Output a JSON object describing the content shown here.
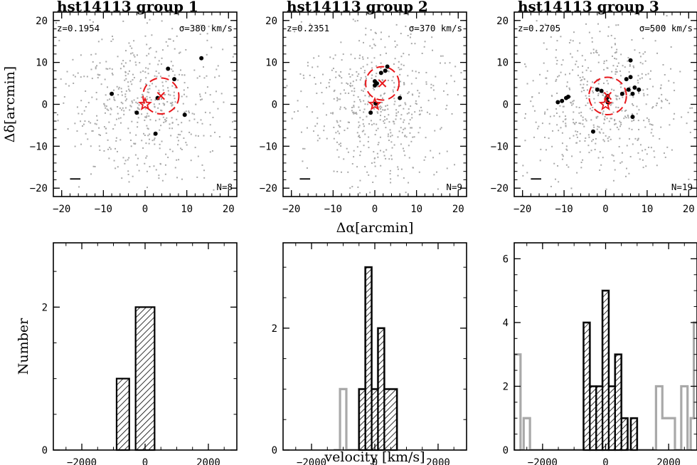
{
  "chart_data": [
    {
      "type": "scatter",
      "title": "hst14113 group 1",
      "redshift_label": "z=0.1954",
      "sigma_label": "σ=380 km/s",
      "n_label": "N=8",
      "xlabel": "",
      "ylabel": "Δδ[arcmin]",
      "xlim": [
        -22,
        22
      ],
      "ylim": [
        -22,
        22
      ],
      "xticks": [
        -20,
        -10,
        0,
        10,
        20
      ],
      "yticks": [
        -20,
        -10,
        0,
        10,
        20
      ],
      "members": [
        [
          5.5,
          8.5
        ],
        [
          7,
          6
        ],
        [
          13.5,
          11
        ],
        [
          -8,
          2.5
        ],
        [
          3,
          1.5
        ],
        [
          -2,
          -2
        ],
        [
          9.5,
          -2.5
        ],
        [
          2.5,
          -7
        ]
      ],
      "center_cross": [
        3.8,
        2.0
      ],
      "bcg_star": [
        0,
        0
      ],
      "circle": {
        "center": [
          3.8,
          2.0
        ],
        "radius": 4.3
      },
      "scale_bar": [
        -18,
        -15.5,
        -17.8
      ]
    },
    {
      "type": "scatter",
      "title": "hst14113 group 2",
      "redshift_label": "z=0.2351",
      "sigma_label": "σ=370 km/s",
      "n_label": "N=9",
      "xlabel": "Δα[arcmin]",
      "ylabel": "",
      "xlim": [
        -22,
        22
      ],
      "ylim": [
        -22,
        22
      ],
      "xticks": [
        -20,
        -10,
        0,
        10,
        20
      ],
      "yticks": [
        -20,
        -10,
        0,
        10,
        20
      ],
      "members": [
        [
          3,
          9
        ],
        [
          2.5,
          8
        ],
        [
          1.5,
          7.5
        ],
        [
          0,
          5.5
        ],
        [
          0,
          4.5
        ],
        [
          0.5,
          5
        ],
        [
          6,
          1.5
        ],
        [
          -1,
          -2
        ],
        [
          0.2,
          0.2
        ]
      ],
      "center_cross": [
        1.8,
        5.0
      ],
      "bcg_star": [
        0,
        0
      ],
      "circle": {
        "center": [
          1.8,
          5.0
        ],
        "radius": 4.0
      },
      "scale_bar": [
        -18,
        -15.5,
        -17.8
      ]
    },
    {
      "type": "scatter",
      "title": "hst14113 group 3",
      "redshift_label": "z=0.2705",
      "sigma_label": "σ=500 km/s",
      "n_label": "N=19",
      "xlabel": "",
      "ylabel": "",
      "xlim": [
        -22,
        22
      ],
      "ylim": [
        -22,
        22
      ],
      "xticks": [
        -20,
        -10,
        0,
        10,
        20
      ],
      "yticks": [
        -20,
        -10,
        0,
        10,
        20
      ],
      "members": [
        [
          -11.5,
          0.5
        ],
        [
          -10.5,
          0.8
        ],
        [
          -9.5,
          1.5
        ],
        [
          -9,
          1.8
        ],
        [
          -2,
          3.5
        ],
        [
          -1,
          3.2
        ],
        [
          0.3,
          1.5
        ],
        [
          0.5,
          2
        ],
        [
          4,
          2.5
        ],
        [
          5.5,
          3.5
        ],
        [
          6,
          10.5
        ],
        [
          6,
          6.5
        ],
        [
          7,
          4
        ],
        [
          8,
          3.5
        ],
        [
          6.5,
          2.5
        ],
        [
          6.5,
          -3
        ],
        [
          -3,
          -6.5
        ],
        [
          0.5,
          0.5
        ],
        [
          5,
          6
        ]
      ],
      "center_cross": [
        0.5,
        2.0
      ],
      "bcg_star": [
        0,
        0
      ],
      "circle": {
        "center": [
          0.5,
          2.0
        ],
        "radius": 4.5
      },
      "scale_bar": [
        -18,
        -15.5,
        -17.8
      ]
    },
    {
      "type": "histogram",
      "title": "",
      "xlabel": "",
      "ylabel": "Number",
      "xlim": [
        -2900,
        2900
      ],
      "ylim": [
        0,
        2.9
      ],
      "xticks": [
        -2000,
        0,
        2000
      ],
      "yticks": [
        0,
        2
      ],
      "members_bins": [
        [
          -900,
          -500,
          1
        ],
        [
          -300,
          300,
          2
        ]
      ],
      "field_hist": []
    },
    {
      "type": "histogram",
      "title": "",
      "xlabel": "velocity [km/s]",
      "ylabel": "",
      "xlim": [
        -2900,
        2900
      ],
      "ylim": [
        0,
        3.4
      ],
      "xticks": [
        -2000,
        0,
        2000
      ],
      "yticks": [
        0,
        2
      ],
      "members_bins": [
        [
          -500,
          -300,
          1
        ],
        [
          -300,
          -100,
          3
        ],
        [
          -100,
          100,
          1
        ],
        [
          100,
          300,
          2
        ],
        [
          300,
          700,
          1
        ]
      ],
      "field_hist": [
        [
          -1300,
          0
        ],
        [
          -1100,
          1
        ],
        [
          -900,
          0
        ],
        [
          -500,
          1
        ],
        [
          -300,
          3
        ],
        [
          -100,
          1
        ],
        [
          100,
          2
        ],
        [
          300,
          1
        ],
        [
          700,
          0
        ]
      ]
    },
    {
      "type": "histogram",
      "title": "",
      "xlabel": "",
      "ylabel": "",
      "xlim": [
        -2900,
        2900
      ],
      "ylim": [
        0,
        6.5
      ],
      "xticks": [
        -2000,
        0,
        2000
      ],
      "yticks": [
        0,
        2,
        4,
        6
      ],
      "members_bins": [
        [
          -700,
          -500,
          4
        ],
        [
          -500,
          -300,
          2
        ],
        [
          -300,
          -100,
          2
        ],
        [
          -100,
          100,
          5
        ],
        [
          100,
          300,
          2
        ],
        [
          300,
          500,
          3
        ],
        [
          500,
          700,
          1
        ],
        [
          800,
          1000,
          1
        ]
      ],
      "field_hist": [
        [
          -2900,
          3
        ],
        [
          -2700,
          0
        ],
        [
          -2600,
          1
        ],
        [
          -2400,
          0
        ],
        [
          -700,
          4
        ],
        [
          -500,
          2
        ],
        [
          -300,
          2
        ],
        [
          -100,
          5
        ],
        [
          100,
          2
        ],
        [
          300,
          3
        ],
        [
          500,
          1
        ],
        [
          700,
          0
        ],
        [
          800,
          1
        ],
        [
          1000,
          0
        ],
        [
          1600,
          2
        ],
        [
          1800,
          1
        ],
        [
          2200,
          0
        ],
        [
          2400,
          2
        ],
        [
          2600,
          0
        ],
        [
          2700,
          1
        ],
        [
          2800,
          4
        ],
        [
          2900,
          4
        ]
      ]
    }
  ],
  "colors": {
    "field_points": "#a9a9a9",
    "members": "#000000",
    "highlight": "#e8171b",
    "field_hist": "#a9a9a9"
  }
}
